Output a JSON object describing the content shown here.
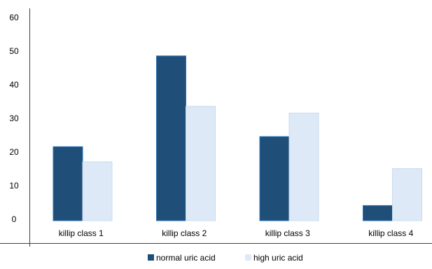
{
  "chart_data": {
    "type": "bar",
    "title": "",
    "xlabel": "",
    "ylabel": "",
    "categories": [
      "killip class 1",
      "killip class 2",
      "killip class 3",
      "killip class 4"
    ],
    "series": [
      {
        "name": "normal uric acid",
        "values": [
          22,
          49,
          25,
          4.5
        ],
        "color": "#1f4e79"
      },
      {
        "name": "high uric acid",
        "values": [
          17.5,
          34,
          32,
          15.5
        ],
        "color": "#dde9f6"
      }
    ],
    "ylim": [
      0,
      60
    ],
    "yticks": [
      0,
      10,
      20,
      30,
      40,
      50,
      60
    ],
    "grid": false,
    "legend_position": "bottom"
  }
}
